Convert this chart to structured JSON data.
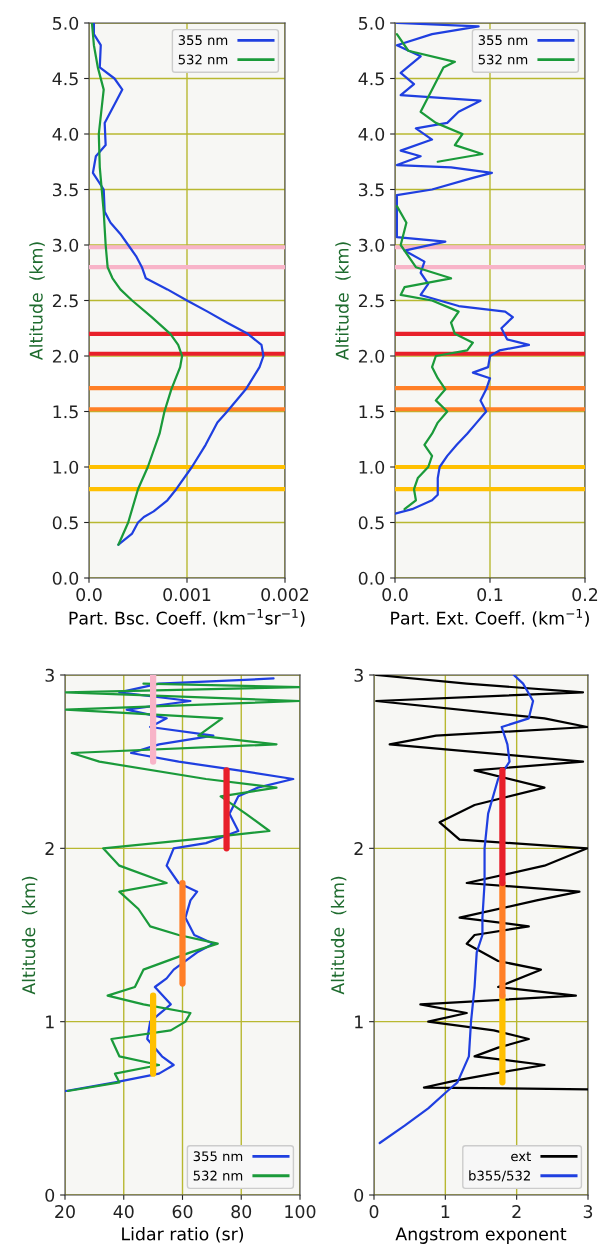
{
  "chart_data": [
    {
      "type": "line",
      "xlabel": "Part. Bsc. Coeff. (km$^{−1}$sr$^{−1}$)",
      "ylabel": "Altitude  (km)",
      "xlim": [
        0,
        0.002
      ],
      "ylim": [
        0,
        5
      ],
      "xticks": [
        {
          "value": 0,
          "label": "0.0"
        },
        0.001,
        0.002
      ],
      "yticks": [
        {
          "value": 0,
          "label": "0.0"
        },
        0.5,
        {
          "value": 1,
          "label": "1.0"
        },
        1.5,
        {
          "value": 2,
          "label": "2.0"
        },
        2.5,
        {
          "value": 3,
          "label": "3.0"
        },
        3.5,
        {
          "value": 4,
          "label": "4.0"
        },
        4.5,
        {
          "value": 5,
          "label": "5.0"
        }
      ],
      "grid": true,
      "legend": "top right",
      "series": [
        {
          "name": "355 nm",
          "color": "#1f3fe0",
          "x": [
            0.0003,
            0.00044,
            0.0005,
            0.00056,
            0.00066,
            0.0008,
            0.00089,
            0.00105,
            0.00119,
            0.00131,
            0.00141,
            0.0016,
            0.00174,
            0.00178,
            0.00176,
            0.00162,
            0.00141,
            0.00121,
            0.001,
            0.0008,
            0.00058,
            0.00054,
            0.00048,
            0.0004,
            0.00032,
            0.00022,
            0.00016,
            0.00015,
            4e-05,
            7e-05,
            0.00017,
            0.00016,
            0.00028,
            0.00034,
            0.00026,
            0.00011,
            0.00012,
            5e-05,
            5e-05
          ],
          "values": [
            0.3,
            0.4,
            0.5,
            0.55,
            0.6,
            0.7,
            0.8,
            1.0,
            1.2,
            1.4,
            1.5,
            1.7,
            1.9,
            2.0,
            2.1,
            2.2,
            2.3,
            2.4,
            2.5,
            2.6,
            2.7,
            2.8,
            2.9,
            3.0,
            3.1,
            3.2,
            3.3,
            3.5,
            3.65,
            3.8,
            3.9,
            4.1,
            4.3,
            4.4,
            4.5,
            4.6,
            4.8,
            4.9,
            5.0
          ]
        },
        {
          "name": "532 nm",
          "color": "#1a9a3a",
          "x": [
            0.0003,
            0.0004,
            0.0005,
            0.0006,
            0.00072,
            0.00077,
            0.00084,
            0.00093,
            0.00095,
            0.00091,
            0.00083,
            0.00064,
            0.00044,
            0.00032,
            0.00024,
            0.00019,
            0.00017,
            0.00015,
            0.00011,
            0.0001,
            0.00015,
            9e-05,
            5e-05,
            3e-05
          ],
          "values": [
            0.3,
            0.5,
            0.8,
            1.0,
            1.3,
            1.5,
            1.7,
            1.9,
            2.0,
            2.1,
            2.2,
            2.35,
            2.5,
            2.6,
            2.7,
            2.8,
            3.0,
            3.3,
            3.7,
            4.0,
            4.4,
            4.6,
            4.8,
            5.0
          ]
        }
      ],
      "ref_lines": [
        {
          "axis": "y",
          "value": 0.8,
          "color": "#ffc000"
        },
        {
          "axis": "y",
          "value": 1.0,
          "color": "#ffc000"
        },
        {
          "axis": "y",
          "value": 1.52,
          "color": "#ff7f27"
        },
        {
          "axis": "y",
          "value": 1.71,
          "color": "#ff7f27"
        },
        {
          "axis": "y",
          "value": 2.02,
          "color": "#e8202a"
        },
        {
          "axis": "y",
          "value": 2.2,
          "color": "#e8202a"
        },
        {
          "axis": "y",
          "value": 2.8,
          "color": "#f8b4c8"
        },
        {
          "axis": "y",
          "value": 2.98,
          "color": "#f8b4c8"
        }
      ]
    },
    {
      "type": "line",
      "xlabel": "Part. Ext. Coeff. (km$^{−1}$)",
      "ylabel": "Altitude  (km)",
      "xlim": [
        0,
        0.2
      ],
      "ylim": [
        0,
        5
      ],
      "xticks": [
        {
          "value": 0,
          "label": "0.0"
        },
        0.1,
        0.2
      ],
      "yticks": [
        {
          "value": 0,
          "label": "0.0"
        },
        0.5,
        {
          "value": 1,
          "label": "1.0"
        },
        1.5,
        {
          "value": 2,
          "label": "2.0"
        },
        2.5,
        {
          "value": 3,
          "label": "3.0"
        },
        3.5,
        {
          "value": 4,
          "label": "4.0"
        },
        4.5,
        {
          "value": 5,
          "label": "5.0"
        }
      ],
      "grid": true,
      "legend": "top right",
      "series": [
        {
          "name": "355 nm",
          "color": "#1f3fe0",
          "x": [
            0.0,
            0.018,
            0.039,
            0.045,
            0.045,
            0.047,
            0.055,
            0.065,
            0.076,
            0.086,
            0.096,
            0.09,
            0.096,
            0.1,
            0.082,
            0.098,
            0.1,
            0.11,
            0.141,
            0.118,
            0.112,
            0.124,
            0.116,
            0.067,
            0.027,
            0.035,
            0.027,
            0.031,
            0.01,
            0.053,
            0.002,
            0.002,
            0.039,
            0.08,
            0.102,
            0.059,
            0.002,
            0.027,
            0.006,
            0.039,
            0.022,
            0.055,
            0.067,
            0.09,
            0.006,
            0.02,
            0.006,
            0.027,
            0.002,
            0.039,
            0.088,
            0.002
          ],
          "values": [
            0.58,
            0.62,
            0.7,
            0.75,
            0.9,
            1.0,
            1.1,
            1.2,
            1.3,
            1.4,
            1.5,
            1.6,
            1.7,
            1.8,
            1.85,
            1.9,
            2.0,
            2.05,
            2.1,
            2.15,
            2.25,
            2.35,
            2.4,
            2.45,
            2.55,
            2.65,
            2.75,
            2.85,
            2.95,
            3.03,
            3.07,
            3.45,
            3.5,
            3.6,
            3.65,
            3.7,
            3.72,
            3.8,
            3.85,
            3.95,
            4.05,
            4.1,
            4.2,
            4.3,
            4.35,
            4.45,
            4.55,
            4.7,
            4.8,
            4.9,
            4.97,
            5.0
          ]
        },
        {
          "name": "532 nm",
          "color": "#1a9a3a",
          "x": [
            0.01,
            0.022,
            0.02,
            0.024,
            0.035,
            0.039,
            0.031,
            0.039,
            0.045,
            0.055,
            0.043,
            0.053,
            0.045,
            0.039,
            0.043,
            0.076,
            0.082,
            0.063,
            0.059,
            0.067,
            0.039,
            0.006,
            0.01,
            0.059,
            0.022,
            0.014,
            0.006,
            0.012,
            0.002,
            null,
            0.045,
            0.092,
            0.063,
            0.071,
            0.043,
            0.027,
            0.051,
            0.063,
            0.014,
            0.002
          ],
          "values": [
            0.62,
            0.7,
            0.8,
            0.9,
            1.0,
            1.1,
            1.2,
            1.3,
            1.4,
            1.5,
            1.6,
            1.7,
            1.8,
            1.9,
            2.0,
            2.05,
            2.12,
            2.2,
            2.3,
            2.4,
            2.5,
            2.55,
            2.62,
            2.7,
            2.8,
            2.9,
            3.0,
            3.2,
            3.35,
            null,
            3.75,
            3.82,
            3.9,
            4.0,
            4.1,
            4.2,
            4.6,
            4.65,
            4.75,
            4.9
          ]
        }
      ],
      "ref_lines": [
        {
          "axis": "y",
          "value": 0.8,
          "color": "#ffc000"
        },
        {
          "axis": "y",
          "value": 1.0,
          "color": "#ffc000"
        },
        {
          "axis": "y",
          "value": 1.52,
          "color": "#ff7f27"
        },
        {
          "axis": "y",
          "value": 1.71,
          "color": "#ff7f27"
        },
        {
          "axis": "y",
          "value": 2.02,
          "color": "#e8202a"
        },
        {
          "axis": "y",
          "value": 2.2,
          "color": "#e8202a"
        },
        {
          "axis": "y",
          "value": 2.8,
          "color": "#f8b4c8"
        },
        {
          "axis": "y",
          "value": 2.98,
          "color": "#f8b4c8"
        }
      ]
    },
    {
      "type": "line",
      "xlabel": "Lidar ratio (sr)",
      "ylabel": "Altitude  (km)",
      "xlim": [
        20,
        100
      ],
      "ylim": [
        0,
        3
      ],
      "xticks": [
        20,
        40,
        60,
        80,
        100
      ],
      "yticks": [
        0,
        1,
        2,
        3
      ],
      "grid": true,
      "legend": "bottom right",
      "series": [
        {
          "name": "355 nm",
          "color": "#1f3fe0",
          "x": [
            20.3,
            37,
            52,
            57,
            53,
            48,
            49,
            56,
            50.6,
            54.6,
            57,
            65,
            70.5,
            64,
            61,
            62.7,
            65,
            58.7,
            54.6,
            57,
            68,
            79,
            76,
            79,
            85.6,
            97.7,
            79,
            58.7,
            42.5,
            52,
            70.5,
            49,
            54.6,
            41,
            62.7,
            38.5,
            52,
            91
          ],
          "values": [
            0.6,
            0.65,
            0.7,
            0.75,
            0.8,
            0.9,
            1.0,
            1.1,
            1.2,
            1.25,
            1.3,
            1.4,
            1.45,
            1.5,
            1.6,
            1.7,
            1.75,
            1.8,
            1.9,
            2.0,
            2.03,
            2.1,
            2.2,
            2.3,
            2.35,
            2.4,
            2.45,
            2.5,
            2.55,
            2.6,
            2.65,
            2.7,
            2.75,
            2.8,
            2.85,
            2.9,
            2.95,
            2.98
          ]
        },
        {
          "name": "532 nm",
          "color": "#1a9a3a",
          "x": [
            21,
            38.5,
            37,
            52,
            38.5,
            35.8,
            56,
            61,
            62.7,
            46.7,
            34.5,
            43.8,
            46.7,
            62.7,
            72,
            58.7,
            49,
            45,
            38.5,
            54.6,
            38.5,
            33,
            62.7,
            89.6,
            81.5,
            73,
            92,
            68,
            31.7,
            22.3,
            92,
            65.4,
            73.5,
            20.3,
            100,
            20.3,
            100,
            46.7
          ],
          "values": [
            0.6,
            0.65,
            0.7,
            0.75,
            0.8,
            0.9,
            0.95,
            1.0,
            1.05,
            1.1,
            1.15,
            1.2,
            1.3,
            1.4,
            1.45,
            1.5,
            1.55,
            1.65,
            1.75,
            1.8,
            1.9,
            2.0,
            2.05,
            2.1,
            2.2,
            2.3,
            2.35,
            2.4,
            2.5,
            2.55,
            2.6,
            2.65,
            2.75,
            2.8,
            2.85,
            2.9,
            2.93,
            2.95
          ]
        },
        {
          "color": "#f8b4c8",
          "x": [
            50,
            50
          ],
          "values": [
            2.5,
            3.0
          ]
        },
        {
          "color": "#e8202a",
          "x": [
            75,
            75
          ],
          "values": [
            2.0,
            2.45
          ]
        },
        {
          "color": "#ff7f27",
          "x": [
            60,
            60
          ],
          "values": [
            1.22,
            1.8
          ]
        },
        {
          "color": "#ffc000",
          "x": [
            50,
            50
          ],
          "values": [
            0.7,
            1.15
          ]
        }
      ]
    },
    {
      "type": "line",
      "xlabel": "Angstrom exponent",
      "ylabel": "Altitude  (km)",
      "xlim": [
        0,
        3
      ],
      "ylim": [
        0,
        3
      ],
      "xticks": [
        0,
        1,
        2,
        3
      ],
      "yticks": [
        0,
        1,
        2,
        3
      ],
      "grid": true,
      "legend": "bottom right",
      "series": [
        {
          "name": "ext",
          "color": "#000000",
          "x": [
            3.0,
            0.7,
            1.14,
            1.68,
            2.39,
            1.41,
            1.74,
            2.17,
            1.68,
            0.76,
            1.3,
            0.65,
            2.83,
            1.74,
            2.34,
            1.74,
            1.3,
            1.41,
            2.17,
            1.2,
            2.28,
            2.88,
            1.3,
            2.39,
            2.99,
            1.2,
            0.92,
            1.41,
            2.39,
            1.41,
            2.93,
            0.22,
            0.87,
            2.99,
            2.39,
            0.03,
            2.93,
            1.3,
            0.03
          ],
          "values": [
            0.61,
            0.62,
            0.66,
            0.7,
            0.75,
            0.8,
            0.85,
            0.9,
            0.95,
            1.0,
            1.05,
            1.1,
            1.15,
            1.2,
            1.3,
            1.35,
            1.45,
            1.5,
            1.55,
            1.6,
            1.7,
            1.75,
            1.8,
            1.9,
            2.0,
            2.05,
            2.15,
            2.25,
            2.35,
            2.45,
            2.5,
            2.6,
            2.65,
            2.7,
            2.75,
            2.85,
            2.9,
            2.95,
            3.0
          ]
        },
        {
          "name": "b355/532",
          "color": "#1f3fe0",
          "x": [
            0.08,
            0.43,
            0.76,
            1.03,
            1.17,
            1.33,
            1.36,
            1.41,
            1.44,
            1.52,
            1.52,
            1.55,
            1.55,
            1.6,
            1.74,
            1.9,
            1.87,
            1.79,
            2.17,
            2.23,
            2.09,
            1.96
          ],
          "values": [
            0.3,
            0.4,
            0.5,
            0.6,
            0.65,
            0.8,
            1.0,
            1.2,
            1.4,
            1.5,
            1.6,
            1.8,
            2.0,
            2.2,
            2.4,
            2.5,
            2.6,
            2.7,
            2.75,
            2.85,
            2.95,
            3.0
          ]
        },
        {
          "color": "#ffc000",
          "x": [
            1.8,
            1.8
          ],
          "values": [
            0.65,
            1.15
          ]
        },
        {
          "color": "#ff7f27",
          "x": [
            1.8,
            1.8
          ],
          "values": [
            1.15,
            1.8
          ]
        },
        {
          "color": "#e8202a",
          "x": [
            1.8,
            1.8
          ],
          "values": [
            1.8,
            2.45
          ]
        }
      ]
    }
  ]
}
